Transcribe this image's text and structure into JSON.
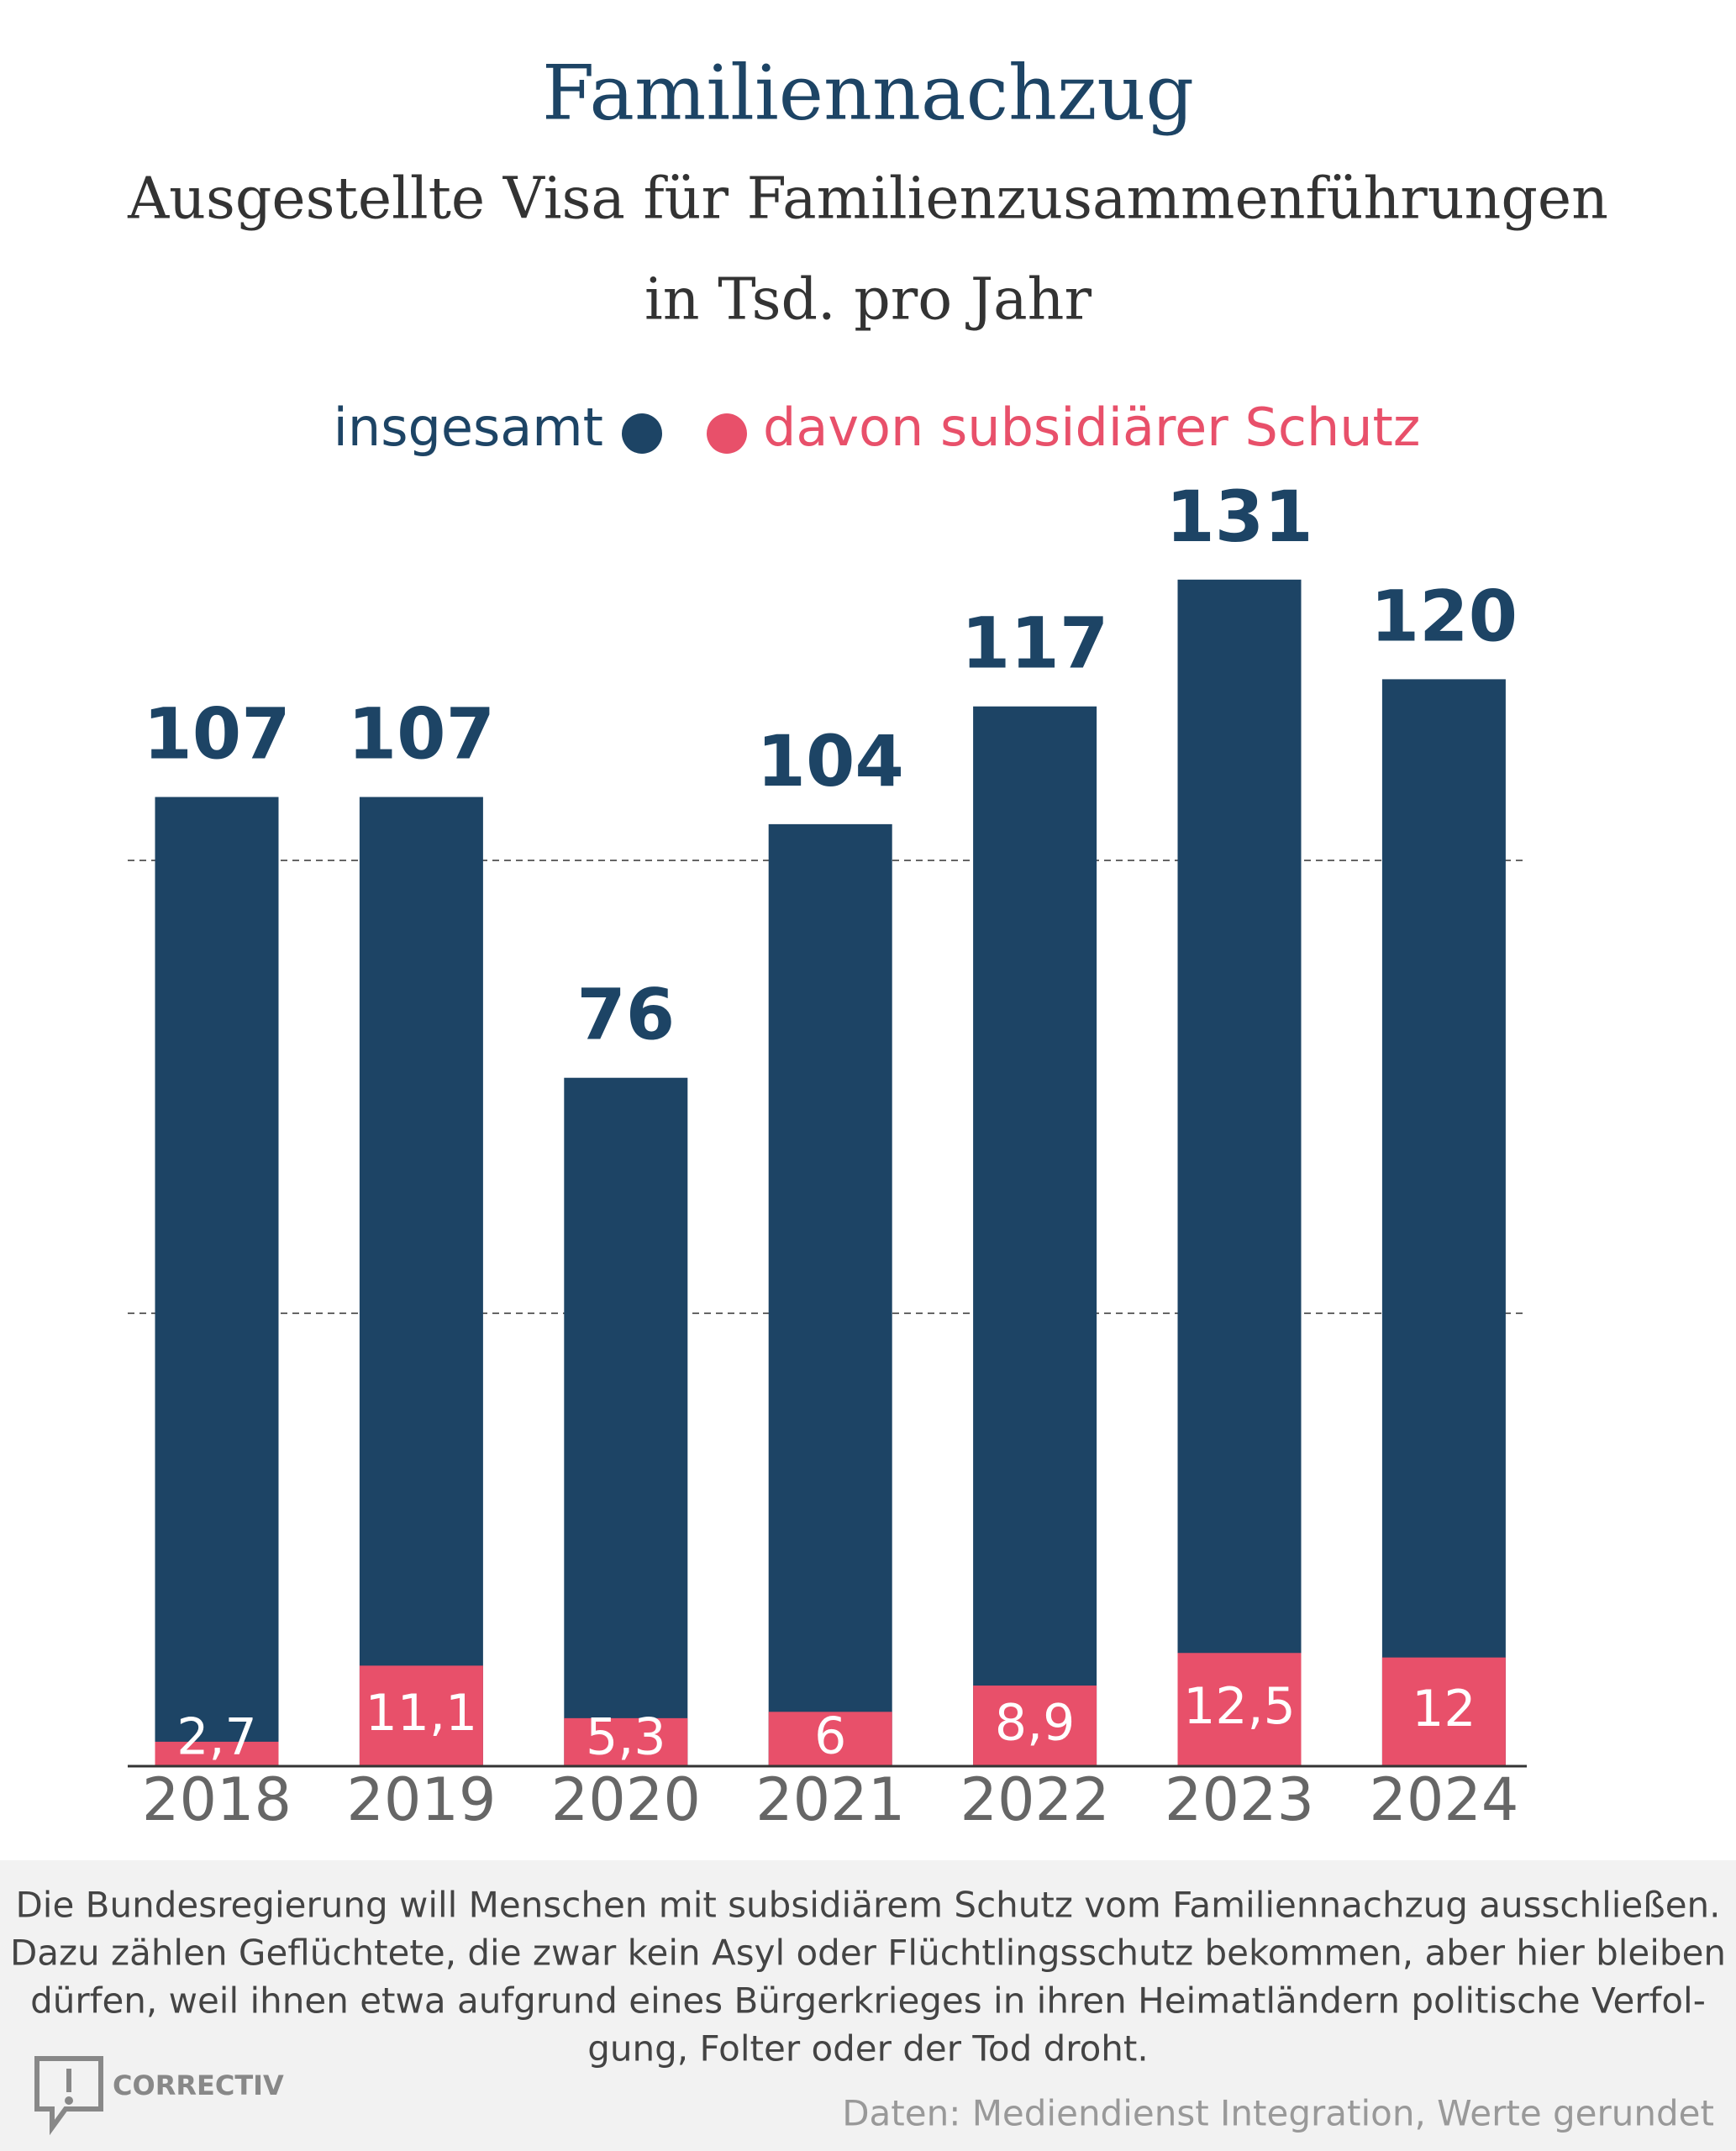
{
  "chart_data": {
    "type": "bar",
    "title": "Familiennachzug",
    "subtitle": [
      "Ausgestellte Visa für Familienzusammenführungen",
      "in Tsd. pro Jahr"
    ],
    "categories": [
      "2018",
      "2019",
      "2020",
      "2021",
      "2022",
      "2023",
      "2024"
    ],
    "series": [
      {
        "name": "insgesamt",
        "color": "#1d4465",
        "values": [
          107,
          107,
          76,
          104,
          117,
          131,
          120
        ]
      },
      {
        "name": "davon subsidiärer Schutz",
        "color": "#e8506a",
        "values": [
          2.7,
          11.1,
          5.3,
          6,
          8.9,
          12.5,
          12
        ],
        "value_labels": [
          "2,7",
          "11,1",
          "5,3",
          "6",
          "8,9",
          "12,5",
          "12"
        ]
      }
    ],
    "ylim": [
      0,
      150
    ],
    "yticks": [
      50,
      100
    ],
    "grid": true,
    "note": [
      "Die Bundesregierung will Menschen mit subsidiärem Schutz vom Familiennachzug ausschließen.",
      "Dazu zählen Geflüchtete, die zwar kein Asyl oder Flüchtlingsschutz bekommen, aber hier bleiben",
      "dürfen, weil ihnen etwa aufgrund eines Bürgerkrieges in ihren Heimatländern politische Verfol-",
      "gung, Folter oder der Tod droht."
    ],
    "brand": "CORRECTIV",
    "source": "Daten: Mediendienst Integration, Werte gerundet"
  }
}
